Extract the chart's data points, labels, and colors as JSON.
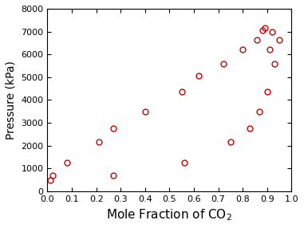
{
  "x": [
    0.01,
    0.02,
    0.08,
    0.21,
    0.27,
    0.27,
    0.4,
    0.55,
    0.56,
    0.62,
    0.72,
    0.75,
    0.8,
    0.83,
    0.86,
    0.87,
    0.88,
    0.89,
    0.9,
    0.91,
    0.92,
    0.93,
    0.95
  ],
  "y": [
    500,
    700,
    1250,
    2150,
    2750,
    700,
    3500,
    4350,
    1250,
    5050,
    5600,
    2150,
    6200,
    2750,
    6650,
    3500,
    7050,
    7150,
    4350,
    6200,
    7000,
    5600,
    6650
  ],
  "xlabel": "Mole Fraction of CO$_2$",
  "ylabel": "Pressure (kPa)",
  "xlim": [
    0.0,
    1.0
  ],
  "ylim": [
    0,
    8000
  ],
  "xticks": [
    0.0,
    0.1,
    0.2,
    0.3,
    0.4,
    0.5,
    0.6,
    0.7,
    0.8,
    0.9,
    1.0
  ],
  "yticks": [
    0,
    1000,
    2000,
    3000,
    4000,
    5000,
    6000,
    7000,
    8000
  ],
  "marker_color": "#cc0000",
  "marker": "o",
  "markersize": 5,
  "markerfacecolor": "none",
  "markeredgewidth": 1.0,
  "bg_color": "#ffffff",
  "xlabel_fontsize": 11,
  "ylabel_fontsize": 10,
  "tick_fontsize": 8
}
